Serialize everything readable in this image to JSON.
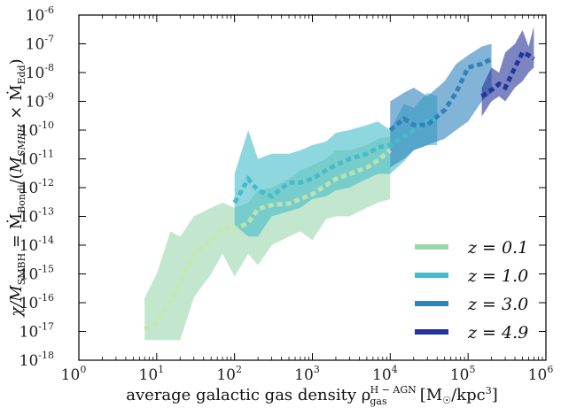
{
  "chart_data": {
    "type": "line",
    "x_scale": "log",
    "y_scale": "log",
    "xlim": [
      1,
      1000000
    ],
    "ylim": [
      1e-18,
      1e-06
    ],
    "x_ticks": [
      {
        "base": "10",
        "exp": "0"
      },
      {
        "base": "10",
        "exp": "1"
      },
      {
        "base": "10",
        "exp": "2"
      },
      {
        "base": "10",
        "exp": "3"
      },
      {
        "base": "10",
        "exp": "4"
      },
      {
        "base": "10",
        "exp": "5"
      },
      {
        "base": "10",
        "exp": "6"
      }
    ],
    "y_ticks": [
      {
        "base": "10",
        "exp": "-18"
      },
      {
        "base": "10",
        "exp": "-17"
      },
      {
        "base": "10",
        "exp": "-16"
      },
      {
        "base": "10",
        "exp": "-15"
      },
      {
        "base": "10",
        "exp": "-14"
      },
      {
        "base": "10",
        "exp": "-13"
      },
      {
        "base": "10",
        "exp": "-12"
      },
      {
        "base": "10",
        "exp": "-11"
      },
      {
        "base": "10",
        "exp": "-10"
      },
      {
        "base": "10",
        "exp": "-9"
      },
      {
        "base": "10",
        "exp": "-8"
      },
      {
        "base": "10",
        "exp": "-7"
      },
      {
        "base": "10",
        "exp": "-6"
      }
    ],
    "xlabel": "average galactic gas density ρgasH−AGN [M☉/kpc3]",
    "ylabel": "χ/MSMBH = ṀBondi/(MSMBH × ṀEdd)",
    "legend_position": "lower-right",
    "series": [
      {
        "name": "z = 0.1",
        "color": "#9ad7ad",
        "x": [
          7,
          10,
          15,
          20,
          30,
          50,
          70,
          100,
          150,
          200,
          300,
          500,
          700,
          1000,
          1500,
          2000,
          3000,
          5000,
          7000,
          10000
        ],
        "y": [
          1.2e-17,
          2e-17,
          1e-16,
          5e-16,
          5e-15,
          1.5e-14,
          4e-14,
          3.5e-14,
          6e-14,
          1.8e-13,
          2.5e-13,
          2.8e-13,
          4e-13,
          6e-13,
          1.2e-12,
          2e-12,
          3e-12,
          5e-12,
          9e-12,
          2e-11
        ],
        "upper": [
          1.5e-16,
          1e-15,
          3e-14,
          2e-14,
          1e-13,
          2e-13,
          3e-13,
          2e-13,
          3e-13,
          8e-13,
          1e-12,
          2e-12,
          4e-12,
          6e-12,
          1e-11,
          2e-11,
          2e-11,
          3e-11,
          5e-11,
          6e-11
        ],
        "lower": [
          5e-18,
          5e-18,
          5e-18,
          5e-18,
          1.5e-16,
          1e-15,
          5e-15,
          8e-16,
          5e-15,
          2e-15,
          1e-14,
          2e-14,
          3e-14,
          1.5e-14,
          8e-14,
          1e-13,
          1e-13,
          2e-13,
          3e-13,
          4e-13
        ]
      },
      {
        "name": "z = 1.0",
        "color": "#44bcc9",
        "x": [
          100,
          150,
          200,
          300,
          500,
          700,
          1000,
          1500,
          2000,
          3000,
          5000,
          7000,
          10000,
          15000,
          20000,
          30000,
          40000
        ],
        "y": [
          3e-13,
          2e-12,
          8e-13,
          5e-13,
          1.5e-12,
          1.5e-12,
          2e-12,
          4e-12,
          6e-12,
          1e-11,
          1.5e-11,
          2.5e-11,
          3e-11,
          6e-11,
          1e-10,
          2e-10,
          2.5e-10
        ],
        "upper": [
          3e-12,
          1e-10,
          1e-11,
          1.5e-11,
          1.5e-11,
          2e-11,
          3e-11,
          4e-11,
          8e-11,
          1e-10,
          1.5e-10,
          2e-10,
          1e-10,
          8e-10,
          6e-10,
          2e-09,
          1.5e-09
        ],
        "lower": [
          5e-14,
          2e-14,
          2e-14,
          1e-13,
          1.5e-13,
          2e-13,
          4e-13,
          5e-13,
          8e-13,
          1e-12,
          2e-12,
          3e-12,
          3e-12,
          8e-12,
          2e-11,
          3e-11,
          3e-11
        ]
      },
      {
        "name": "z = 3.0",
        "color": "#2f82bc",
        "x": [
          10000,
          15000,
          20000,
          30000,
          50000,
          70000,
          100000,
          150000,
          200000
        ],
        "y": [
          1e-10,
          2.5e-10,
          1.5e-10,
          1.5e-10,
          5e-10,
          2e-09,
          1.5e-08,
          2e-08,
          3e-08
        ],
        "upper": [
          1e-09,
          2e-09,
          3e-09,
          1.5e-09,
          5e-09,
          2e-08,
          4e-08,
          8e-08,
          1e-07
        ],
        "lower": [
          5e-12,
          1e-11,
          2e-11,
          3e-11,
          5e-11,
          1e-10,
          2e-10,
          1e-09,
          2e-09
        ]
      },
      {
        "name": "z = 4.9",
        "color": "#24349a",
        "x": [
          150000,
          200000,
          250000,
          300000,
          400000,
          500000,
          600000,
          700000
        ],
        "y": [
          1.5e-09,
          2.5e-09,
          4e-09,
          3e-09,
          1.5e-08,
          5e-08,
          4e-08,
          3e-08
        ],
        "upper": [
          3e-09,
          1.5e-08,
          1e-08,
          5e-08,
          1e-07,
          3e-07,
          8e-08,
          4e-07
        ],
        "lower": [
          3e-10,
          1e-09,
          1.5e-09,
          1e-09,
          3e-09,
          5e-09,
          1e-08,
          1.5e-08
        ]
      }
    ]
  }
}
